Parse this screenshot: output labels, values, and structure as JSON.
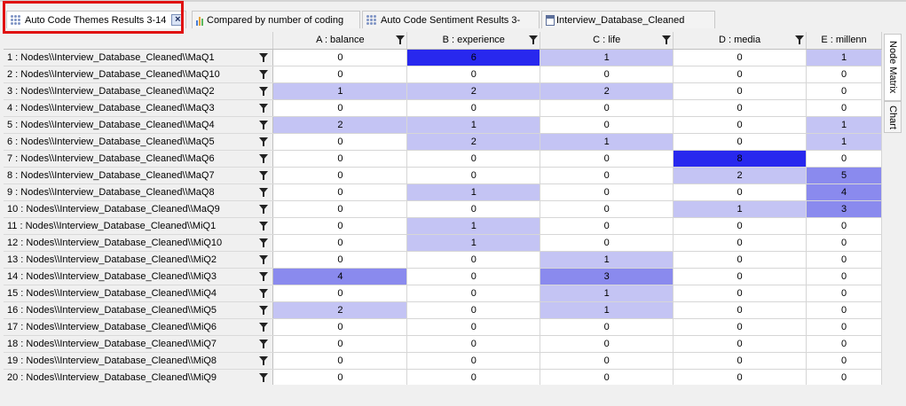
{
  "tabs": [
    {
      "label": "Auto Code Themes Results 3-14",
      "icon": "matrix-icon",
      "active": true,
      "closable": true
    },
    {
      "label": "Compared by number of coding",
      "icon": "chart-icon",
      "active": false
    },
    {
      "label": "Auto Code Sentiment Results 3-",
      "icon": "matrix-icon",
      "active": false
    },
    {
      "label": "Interview_Database_Cleaned",
      "icon": "document-icon",
      "active": false
    }
  ],
  "close_label": "×",
  "columns": [
    "A : balance",
    "B : experience",
    "C : life",
    "D : media",
    "E : millenn"
  ],
  "rows": [
    {
      "label": "1 : Nodes\\\\Interview_Database_Cleaned\\\\MaQ1",
      "values": [
        0,
        6,
        1,
        0,
        1
      ]
    },
    {
      "label": "2 : Nodes\\\\Interview_Database_Cleaned\\\\MaQ10",
      "values": [
        0,
        0,
        0,
        0,
        0
      ]
    },
    {
      "label": "3 : Nodes\\\\Interview_Database_Cleaned\\\\MaQ2",
      "values": [
        1,
        2,
        2,
        0,
        0
      ]
    },
    {
      "label": "4 : Nodes\\\\Interview_Database_Cleaned\\\\MaQ3",
      "values": [
        0,
        0,
        0,
        0,
        0
      ]
    },
    {
      "label": "5 : Nodes\\\\Interview_Database_Cleaned\\\\MaQ4",
      "values": [
        2,
        1,
        0,
        0,
        1
      ]
    },
    {
      "label": "6 : Nodes\\\\Interview_Database_Cleaned\\\\MaQ5",
      "values": [
        0,
        2,
        1,
        0,
        1
      ]
    },
    {
      "label": "7 : Nodes\\\\Interview_Database_Cleaned\\\\MaQ6",
      "values": [
        0,
        0,
        0,
        8,
        0
      ]
    },
    {
      "label": "8 : Nodes\\\\Interview_Database_Cleaned\\\\MaQ7",
      "values": [
        0,
        0,
        0,
        2,
        5
      ]
    },
    {
      "label": "9 : Nodes\\\\Interview_Database_Cleaned\\\\MaQ8",
      "values": [
        0,
        1,
        0,
        0,
        4
      ]
    },
    {
      "label": "10 : Nodes\\\\Interview_Database_Cleaned\\\\MaQ9",
      "values": [
        0,
        0,
        0,
        1,
        3
      ]
    },
    {
      "label": "11 : Nodes\\\\Interview_Database_Cleaned\\\\MiQ1",
      "values": [
        0,
        1,
        0,
        0,
        0
      ]
    },
    {
      "label": "12 : Nodes\\\\Interview_Database_Cleaned\\\\MiQ10",
      "values": [
        0,
        1,
        0,
        0,
        0
      ]
    },
    {
      "label": "13 : Nodes\\\\Interview_Database_Cleaned\\\\MiQ2",
      "values": [
        0,
        0,
        1,
        0,
        0
      ]
    },
    {
      "label": "14 : Nodes\\\\Interview_Database_Cleaned\\\\MiQ3",
      "values": [
        4,
        0,
        3,
        0,
        0
      ]
    },
    {
      "label": "15 : Nodes\\\\Interview_Database_Cleaned\\\\MiQ4",
      "values": [
        0,
        0,
        1,
        0,
        0
      ]
    },
    {
      "label": "16 : Nodes\\\\Interview_Database_Cleaned\\\\MiQ5",
      "values": [
        2,
        0,
        1,
        0,
        0
      ]
    },
    {
      "label": "17 : Nodes\\\\Interview_Database_Cleaned\\\\MiQ6",
      "values": [
        0,
        0,
        0,
        0,
        0
      ]
    },
    {
      "label": "18 : Nodes\\\\Interview_Database_Cleaned\\\\MiQ7",
      "values": [
        0,
        0,
        0,
        0,
        0
      ]
    },
    {
      "label": "19 : Nodes\\\\Interview_Database_Cleaned\\\\MiQ8",
      "values": [
        0,
        0,
        0,
        0,
        0
      ]
    },
    {
      "label": "20 : Nodes\\\\Interview_Database_Cleaned\\\\MiQ9",
      "values": [
        0,
        0,
        0,
        0,
        0
      ]
    }
  ],
  "shading": {
    "light": "#c4c4f4",
    "mid": "#8a8aee",
    "strong": "#2828ee",
    "zero": "#ffffff"
  },
  "side_tabs": [
    {
      "label": "Node Matrix",
      "active": true
    },
    {
      "label": "Chart",
      "active": false
    }
  ],
  "highlight_color": "#e01010"
}
